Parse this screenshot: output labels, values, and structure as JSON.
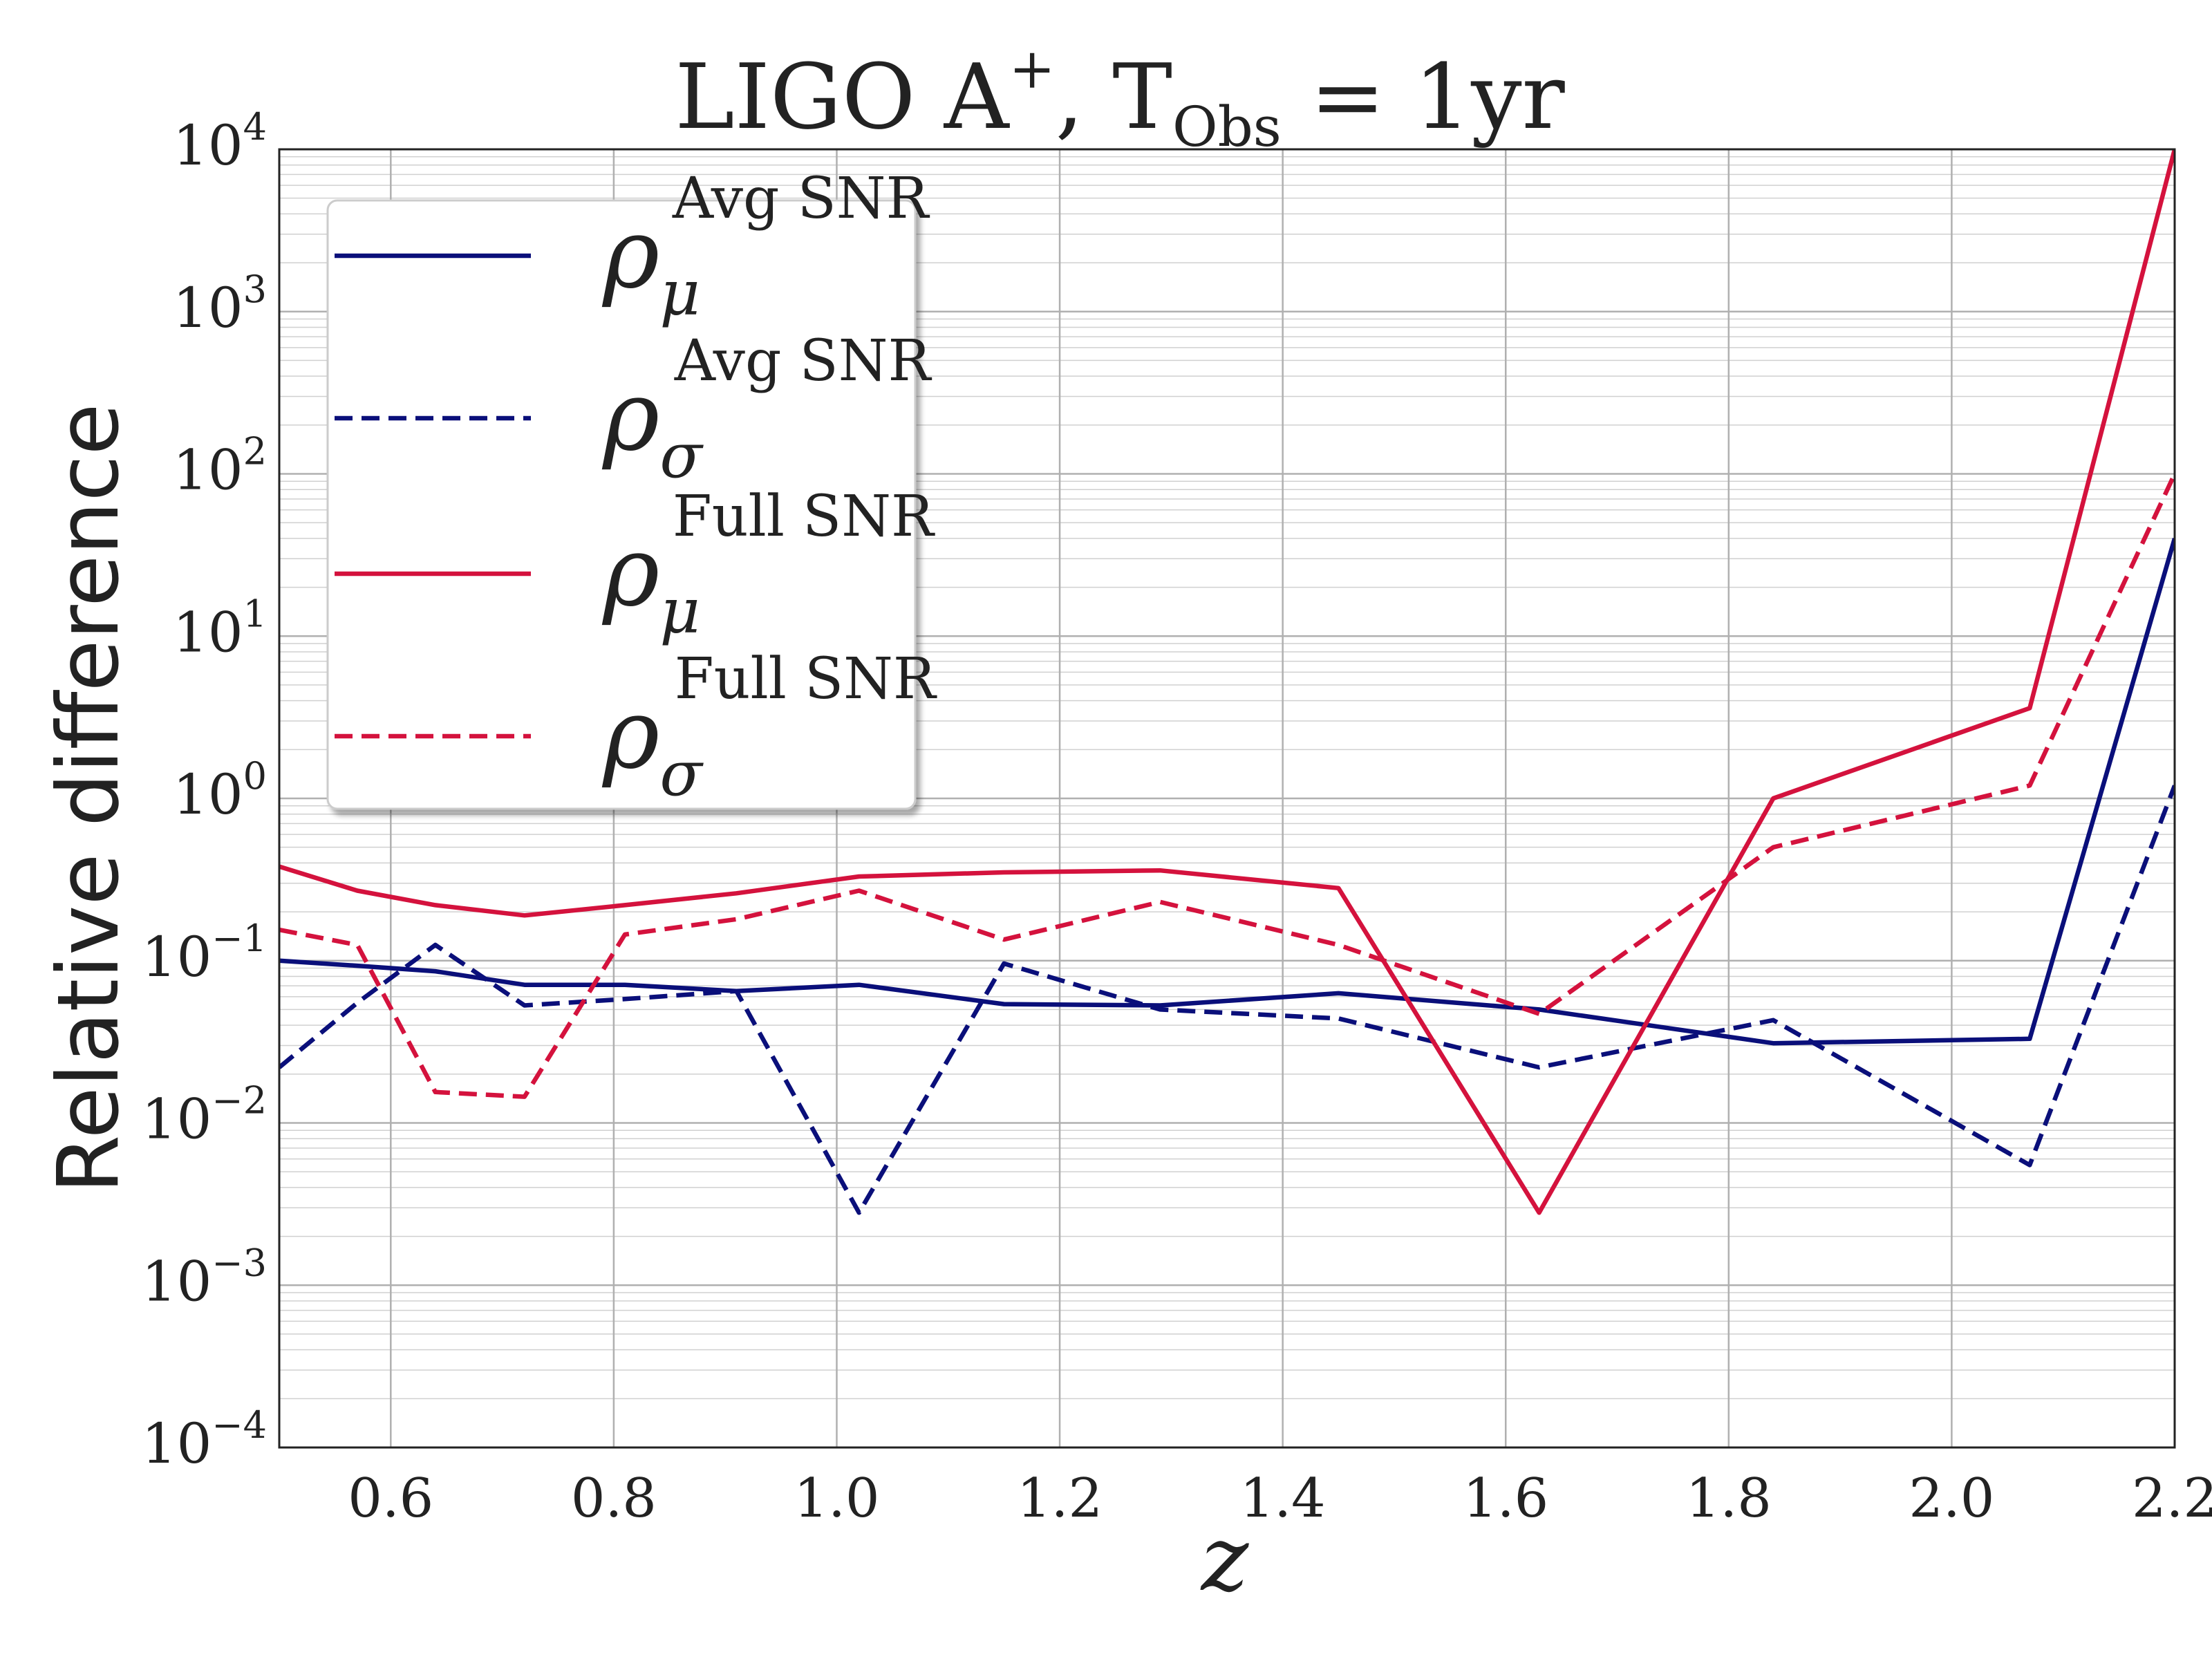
{
  "chart_data": {
    "type": "line",
    "title": {
      "base": "LIGO A",
      "base_sup": "+",
      "sep": ", ",
      "var": "T",
      "var_sub": "Obs",
      "rest": " = 1yr"
    },
    "xlabel": "z",
    "ylabel": "Relative difference",
    "xlim": [
      0.5,
      2.2
    ],
    "ylim": [
      0.0001,
      10000
    ],
    "yscale": "log",
    "grid": true,
    "grid_minor": true,
    "legend_position": "upper-left",
    "x_ticks": [
      {
        "value": 0.6,
        "label": "0.6"
      },
      {
        "value": 0.8,
        "label": "0.8"
      },
      {
        "value": 1.0,
        "label": "1.0"
      },
      {
        "value": 1.2,
        "label": "1.2"
      },
      {
        "value": 1.4,
        "label": "1.4"
      },
      {
        "value": 1.6,
        "label": "1.6"
      },
      {
        "value": 1.8,
        "label": "1.8"
      },
      {
        "value": 2.0,
        "label": "2.0"
      },
      {
        "value": 2.2,
        "label": "2.2"
      }
    ],
    "y_ticks": [
      {
        "value": 0.0001,
        "base": "10",
        "exp": "−4"
      },
      {
        "value": 0.001,
        "base": "10",
        "exp": "−3"
      },
      {
        "value": 0.01,
        "base": "10",
        "exp": "−2"
      },
      {
        "value": 0.1,
        "base": "10",
        "exp": "−1"
      },
      {
        "value": 1,
        "base": "10",
        "exp": "0"
      },
      {
        "value": 10,
        "base": "10",
        "exp": "1"
      },
      {
        "value": 100,
        "base": "10",
        "exp": "2"
      },
      {
        "value": 1000,
        "base": "10",
        "exp": "3"
      },
      {
        "value": 10000,
        "base": "10",
        "exp": "4"
      }
    ],
    "series": [
      {
        "symbol": "ρ",
        "sub": "μ",
        "sup": "Avg SNR",
        "color": "#0a0f7a",
        "dash": "solid",
        "x": [
          0.5,
          0.57,
          0.64,
          0.72,
          0.81,
          0.91,
          1.02,
          1.15,
          1.29,
          1.45,
          1.63,
          1.84,
          2.07,
          2.2
        ],
        "y": [
          0.1,
          0.093,
          0.086,
          0.071,
          0.071,
          0.065,
          0.071,
          0.054,
          0.053,
          0.063,
          0.05,
          0.031,
          0.033,
          40
        ]
      },
      {
        "symbol": "ρ",
        "sub": "σ",
        "sup": "Avg SNR",
        "color": "#0a0f7a",
        "dash": "dashed",
        "x": [
          0.5,
          0.57,
          0.64,
          0.72,
          0.81,
          0.91,
          1.02,
          1.15,
          1.29,
          1.45,
          1.63,
          1.84,
          2.07,
          2.2
        ],
        "y": [
          0.022,
          0.055,
          0.125,
          0.053,
          0.058,
          0.065,
          0.0028,
          0.096,
          0.05,
          0.044,
          0.022,
          0.043,
          0.0055,
          1.2
        ]
      },
      {
        "symbol": "ρ",
        "sub": "μ",
        "sup": "Full SNR",
        "color": "#d4123d",
        "dash": "solid",
        "x": [
          0.5,
          0.57,
          0.64,
          0.72,
          0.81,
          0.91,
          1.02,
          1.15,
          1.29,
          1.45,
          1.63,
          1.84,
          2.07,
          2.2
        ],
        "y": [
          0.38,
          0.27,
          0.22,
          0.19,
          0.22,
          0.26,
          0.33,
          0.35,
          0.36,
          0.28,
          0.0028,
          1.0,
          3.6,
          10000
        ]
      },
      {
        "symbol": "ρ",
        "sub": "σ",
        "sup": "Full SNR",
        "color": "#d4123d",
        "dash": "dashed",
        "x": [
          0.5,
          0.57,
          0.64,
          0.72,
          0.81,
          0.91,
          1.02,
          1.15,
          1.29,
          1.45,
          1.63,
          1.84,
          2.07,
          2.2
        ],
        "y": [
          0.155,
          0.125,
          0.0155,
          0.0145,
          0.145,
          0.18,
          0.27,
          0.135,
          0.23,
          0.125,
          0.047,
          0.5,
          1.2,
          100
        ]
      }
    ]
  }
}
